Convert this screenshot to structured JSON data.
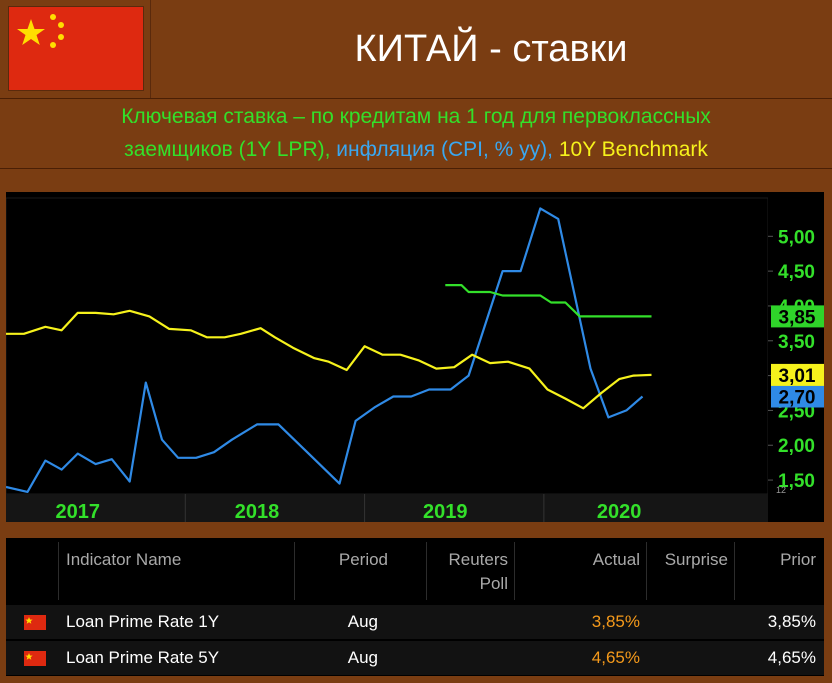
{
  "header": {
    "title": "КИТАЙ - ставки",
    "subtitle_green_1": "Ключевая ставка – по кредитам на 1 год для первоклассных",
    "subtitle_green_2": "заемщиков (1Y LPR),",
    "subtitle_blue": " инфляция (CPI, % yy),",
    "subtitle_yellow": " 10Y Benchmark"
  },
  "colors": {
    "background": "#7a3d12",
    "lpr": "#33e02a",
    "cpi": "#2f8ae6",
    "bond": "#f6f21c",
    "axis_tick": "#33e02a",
    "flag_red": "#de2910",
    "flag_star": "#ffde00"
  },
  "chart_data": {
    "type": "line",
    "xlim": [
      2016.5,
      2020.75
    ],
    "ylim": [
      1.3,
      5.55
    ],
    "xticks": [
      {
        "label": "2017",
        "x": 2016.9
      },
      {
        "label": "2018",
        "x": 2017.9
      },
      {
        "label": "2019",
        "x": 2018.95
      },
      {
        "label": "2020",
        "x": 2019.92
      }
    ],
    "yticks": [
      "1,50",
      "2,00",
      "2,50",
      "3,00",
      "3,50",
      "4,00",
      "4,50",
      "5,00"
    ],
    "yticks_values": [
      1.5,
      2.0,
      2.5,
      3.0,
      3.5,
      4.0,
      4.5,
      5.0
    ],
    "corner_label": "12",
    "series": [
      {
        "key": "cpi",
        "last_label": "2,70",
        "points": [
          [
            2016.5,
            1.4
          ],
          [
            2016.62,
            1.33
          ],
          [
            2016.72,
            1.78
          ],
          [
            2016.81,
            1.65
          ],
          [
            2016.9,
            1.88
          ],
          [
            2017.0,
            1.73
          ],
          [
            2017.09,
            1.8
          ],
          [
            2017.19,
            1.48
          ],
          [
            2017.28,
            2.9
          ],
          [
            2017.37,
            2.08
          ],
          [
            2017.46,
            1.82
          ],
          [
            2017.56,
            1.82
          ],
          [
            2017.66,
            1.9
          ],
          [
            2017.76,
            2.08
          ],
          [
            2017.9,
            2.3
          ],
          [
            2018.02,
            2.3
          ],
          [
            2018.18,
            1.9
          ],
          [
            2018.36,
            1.45
          ],
          [
            2018.45,
            2.35
          ],
          [
            2018.56,
            2.55
          ],
          [
            2018.66,
            2.7
          ],
          [
            2018.76,
            2.7
          ],
          [
            2018.86,
            2.8
          ],
          [
            2018.98,
            2.8
          ],
          [
            2019.08,
            3.0
          ],
          [
            2019.27,
            4.5
          ],
          [
            2019.37,
            4.5
          ],
          [
            2019.48,
            5.4
          ],
          [
            2019.58,
            5.25
          ],
          [
            2019.76,
            3.1
          ],
          [
            2019.86,
            2.4
          ],
          [
            2019.96,
            2.5
          ],
          [
            2020.05,
            2.7
          ]
        ]
      },
      {
        "key": "bond",
        "last_label": "3,01",
        "points": [
          [
            2016.5,
            3.6
          ],
          [
            2016.6,
            3.6
          ],
          [
            2016.72,
            3.7
          ],
          [
            2016.81,
            3.65
          ],
          [
            2016.9,
            3.9
          ],
          [
            2017.0,
            3.9
          ],
          [
            2017.1,
            3.88
          ],
          [
            2017.19,
            3.93
          ],
          [
            2017.3,
            3.85
          ],
          [
            2017.41,
            3.67
          ],
          [
            2017.53,
            3.65
          ],
          [
            2017.62,
            3.55
          ],
          [
            2017.72,
            3.55
          ],
          [
            2017.81,
            3.6
          ],
          [
            2017.92,
            3.68
          ],
          [
            2018.0,
            3.55
          ],
          [
            2018.1,
            3.4
          ],
          [
            2018.22,
            3.25
          ],
          [
            2018.3,
            3.2
          ],
          [
            2018.4,
            3.08
          ],
          [
            2018.5,
            3.42
          ],
          [
            2018.6,
            3.3
          ],
          [
            2018.7,
            3.3
          ],
          [
            2018.8,
            3.22
          ],
          [
            2018.9,
            3.1
          ],
          [
            2019.0,
            3.12
          ],
          [
            2019.1,
            3.3
          ],
          [
            2019.2,
            3.18
          ],
          [
            2019.3,
            3.2
          ],
          [
            2019.42,
            3.1
          ],
          [
            2019.52,
            2.8
          ],
          [
            2019.62,
            2.67
          ],
          [
            2019.72,
            2.53
          ],
          [
            2019.82,
            2.75
          ],
          [
            2019.92,
            2.95
          ],
          [
            2020.0,
            3.0
          ],
          [
            2020.1,
            3.01
          ]
        ]
      },
      {
        "key": "lpr",
        "last_label": "3,85",
        "points": [
          [
            2018.95,
            4.3
          ],
          [
            2019.04,
            4.3
          ],
          [
            2019.08,
            4.2
          ],
          [
            2019.2,
            4.2
          ],
          [
            2019.27,
            4.15
          ],
          [
            2019.48,
            4.15
          ],
          [
            2019.54,
            4.05
          ],
          [
            2019.62,
            4.05
          ],
          [
            2019.7,
            3.85
          ],
          [
            2020.1,
            3.85
          ]
        ]
      }
    ]
  },
  "table": {
    "columns": [
      "Indicator Name",
      "Period",
      "Reuters Poll",
      "Actual",
      "Surprise",
      "Prior"
    ],
    "rows": [
      {
        "name": "Loan Prime Rate 1Y",
        "period": "Aug",
        "poll": "",
        "actual": "3,85%",
        "surprise": "",
        "prior": "3,85%"
      },
      {
        "name": "Loan Prime Rate 5Y",
        "period": "Aug",
        "poll": "",
        "actual": "4,65%",
        "surprise": "",
        "prior": "4,65%"
      }
    ]
  }
}
